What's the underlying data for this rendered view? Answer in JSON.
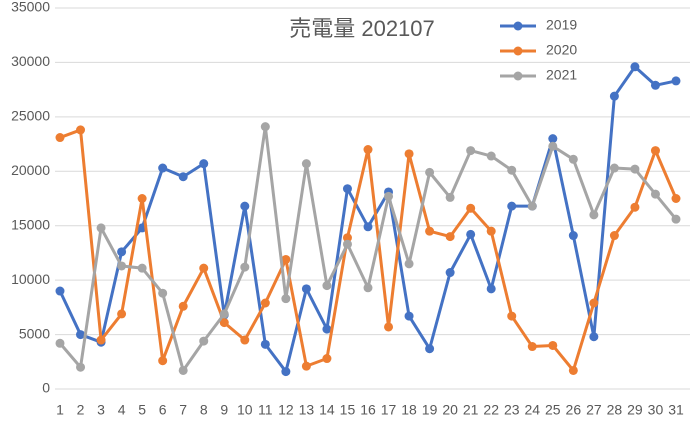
{
  "chart_data": {
    "type": "line",
    "title": "売電量 202107",
    "categories": [
      "1",
      "2",
      "3",
      "4",
      "5",
      "6",
      "7",
      "8",
      "9",
      "10",
      "11",
      "12",
      "13",
      "14",
      "15",
      "16",
      "17",
      "18",
      "19",
      "20",
      "21",
      "22",
      "23",
      "24",
      "25",
      "26",
      "27",
      "28",
      "29",
      "30",
      "31"
    ],
    "series": [
      {
        "name": "2019",
        "color": "#4472c4",
        "values": [
          9000,
          5000,
          4300,
          12600,
          14800,
          20300,
          19500,
          20700,
          6800,
          16800,
          4100,
          1600,
          9200,
          5500,
          18400,
          14900,
          18100,
          6700,
          3700,
          10700,
          14200,
          9200,
          16800,
          16800,
          23000,
          14100,
          4800,
          26900,
          29600,
          27900,
          28300
        ]
      },
      {
        "name": "2020",
        "color": "#ed7d31",
        "values": [
          23100,
          23800,
          4500,
          6900,
          17500,
          2600,
          7600,
          11100,
          6100,
          4500,
          7900,
          11900,
          2100,
          2800,
          13900,
          22000,
          5700,
          21600,
          14500,
          14000,
          16600,
          14500,
          6700,
          3900,
          4000,
          1700,
          7900,
          14100,
          16700,
          21900,
          17500
        ]
      },
      {
        "name": "2021",
        "color": "#a5a5a5",
        "values": [
          4200,
          2000,
          14800,
          11300,
          11100,
          8800,
          1700,
          4400,
          6900,
          11200,
          24100,
          8300,
          20700,
          9500,
          13300,
          9300,
          17700,
          11500,
          19900,
          17600,
          21900,
          21400,
          20100,
          16800,
          22300,
          21100,
          16000,
          20300,
          20200,
          17900,
          15600
        ]
      }
    ],
    "ylim": [
      0,
      35000
    ],
    "yticks": [
      0,
      5000,
      10000,
      15000,
      20000,
      25000,
      30000,
      35000
    ],
    "grid": true,
    "legend": "top-right"
  }
}
